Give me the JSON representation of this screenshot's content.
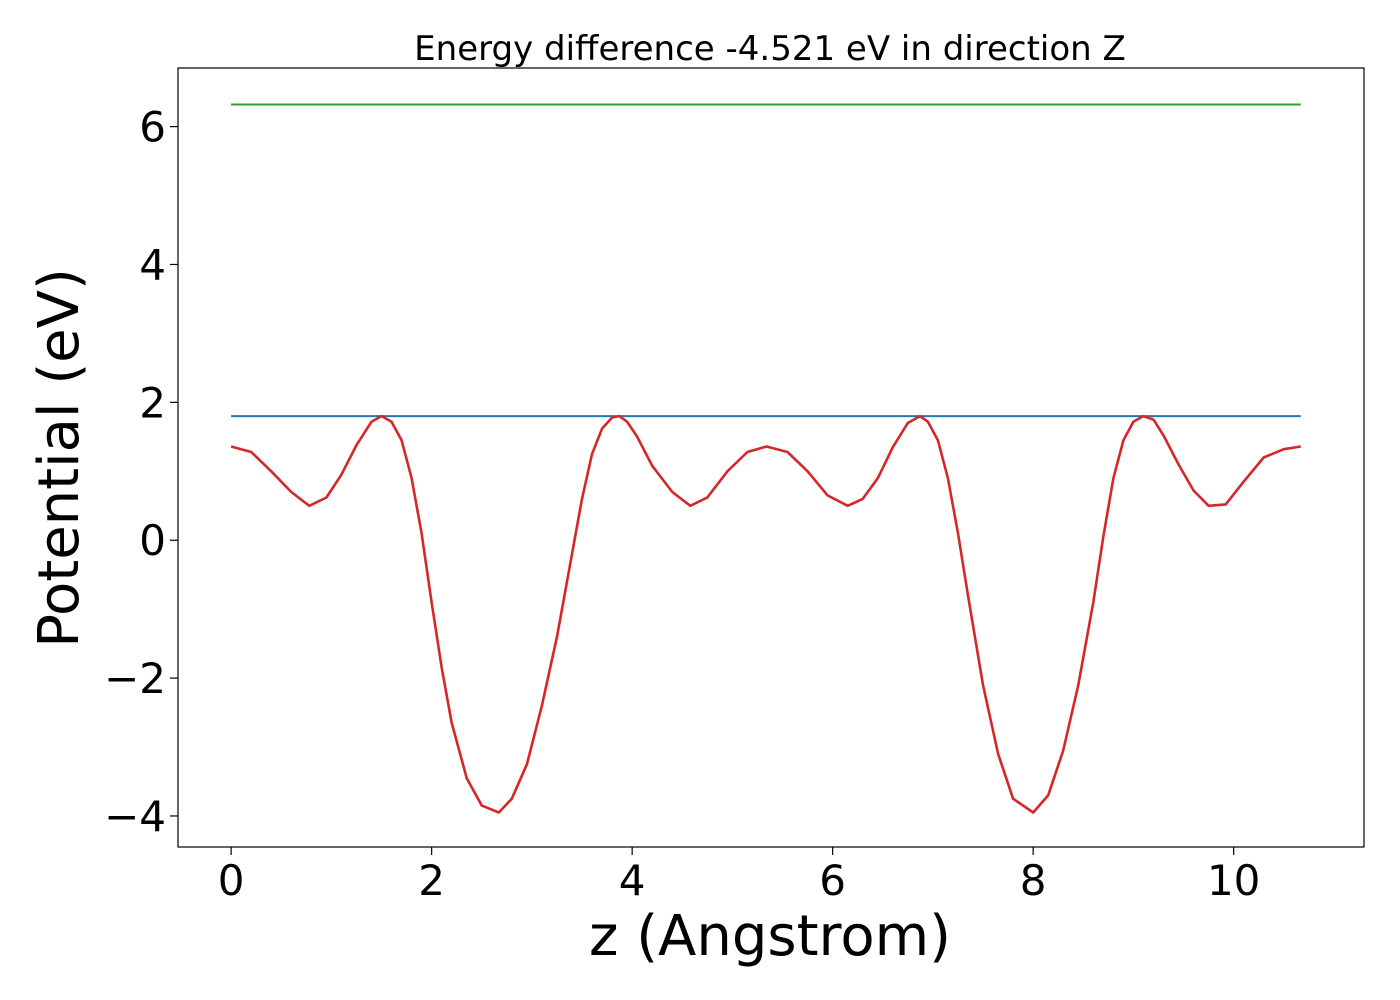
{
  "chart_data": {
    "type": "line",
    "title": "Energy difference -4.521 eV in direction Z",
    "xlabel": "z (Angstrom)",
    "ylabel": "Potential (eV)",
    "xlim": [
      -0.53,
      11.3
    ],
    "ylim": [
      -4.45,
      6.85
    ],
    "xticks": [
      0,
      2,
      4,
      6,
      8,
      10
    ],
    "xtick_labels": [
      "0",
      "2",
      "4",
      "6",
      "8",
      "10"
    ],
    "yticks": [
      -4,
      -2,
      0,
      2,
      4,
      6
    ],
    "ytick_labels": [
      "−4",
      "−2",
      "0",
      "2",
      "4",
      "6"
    ],
    "grid": false,
    "series": [
      {
        "color": "#2ca02c",
        "x": [
          0,
          10.67
        ],
        "y": [
          6.32,
          6.32
        ]
      },
      {
        "color": "#1f77b4",
        "x": [
          0,
          10.67
        ],
        "y": [
          1.8,
          1.8
        ]
      },
      {
        "color": "#d62728",
        "x": [
          0,
          0.2,
          0.4,
          0.6,
          0.78,
          0.95,
          1.1,
          1.25,
          1.4,
          1.5,
          1.6,
          1.7,
          1.8,
          1.9,
          2.0,
          2.1,
          2.2,
          2.35,
          2.5,
          2.67,
          2.8,
          2.95,
          3.1,
          3.25,
          3.4,
          3.5,
          3.6,
          3.7,
          3.8,
          3.87,
          3.95,
          4.05,
          4.2,
          4.4,
          4.58,
          4.75,
          4.95,
          5.15,
          5.34,
          5.55,
          5.75,
          5.95,
          6.15,
          6.3,
          6.45,
          6.6,
          6.75,
          6.87,
          6.95,
          7.05,
          7.15,
          7.25,
          7.35,
          7.5,
          7.65,
          7.8,
          8.0,
          8.15,
          8.3,
          8.45,
          8.6,
          8.7,
          8.8,
          8.9,
          9.0,
          9.1,
          9.2,
          9.3,
          9.45,
          9.6,
          9.75,
          9.92,
          10.1,
          10.3,
          10.5,
          10.67
        ],
        "y": [
          1.36,
          1.28,
          1.0,
          0.7,
          0.5,
          0.62,
          0.95,
          1.38,
          1.72,
          1.8,
          1.72,
          1.45,
          0.9,
          0.1,
          -0.9,
          -1.85,
          -2.65,
          -3.45,
          -3.85,
          -3.95,
          -3.75,
          -3.25,
          -2.4,
          -1.4,
          -0.2,
          0.6,
          1.25,
          1.62,
          1.78,
          1.8,
          1.72,
          1.5,
          1.08,
          0.7,
          0.5,
          0.62,
          1.0,
          1.28,
          1.36,
          1.28,
          1.0,
          0.65,
          0.5,
          0.6,
          0.9,
          1.35,
          1.7,
          1.8,
          1.72,
          1.45,
          0.9,
          0.1,
          -0.8,
          -2.1,
          -3.1,
          -3.75,
          -3.95,
          -3.7,
          -3.05,
          -2.1,
          -0.9,
          0.05,
          0.9,
          1.45,
          1.72,
          1.8,
          1.75,
          1.52,
          1.1,
          0.72,
          0.5,
          0.52,
          0.85,
          1.2,
          1.32,
          1.36
        ]
      }
    ]
  }
}
